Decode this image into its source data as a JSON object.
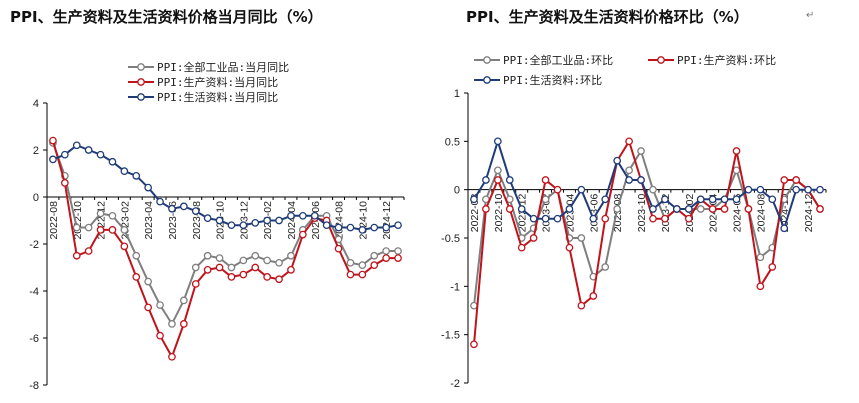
{
  "titles": {
    "left": "PPI、生产资料及生活资料价格当月同比（%）",
    "right": "PPI、生产资料及生活资料价格环比（%）",
    "right_mark": "↵"
  },
  "colors": {
    "all": "#7f7f7f",
    "production": "#c0141c",
    "living": "#1f3c78",
    "axis": "#000000"
  },
  "chart_data": [
    {
      "type": "line",
      "title": "PPI、生产资料及生活资料价格当月同比（%）",
      "xlabel": "",
      "ylabel": "",
      "ylim": [
        -8,
        4
      ],
      "yticks": [
        -8,
        -6,
        -4,
        -2,
        0,
        2,
        4
      ],
      "x": [
        "2022-08",
        "2022-09",
        "2022-10",
        "2022-11",
        "2022-12",
        "2023-01",
        "2023-02",
        "2023-03",
        "2023-04",
        "2023-05",
        "2023-06",
        "2023-07",
        "2023-08",
        "2023-09",
        "2023-10",
        "2023-11",
        "2023-12",
        "2024-01",
        "2024-02",
        "2024-03",
        "2024-04",
        "2024-05",
        "2024-06",
        "2024-07",
        "2024-08",
        "2024-09",
        "2024-10",
        "2024-11",
        "2024-12",
        "2025-01"
      ],
      "xtick_labels": [
        "2022-08",
        "2022-10",
        "2022-12",
        "2023-02",
        "2023-04",
        "2023-06",
        "2023-08",
        "2023-10",
        "2023-12",
        "2024-02",
        "2024-04",
        "2024-06",
        "2024-08",
        "2024-10",
        "2024-12"
      ],
      "legend_position": "top-center",
      "series": [
        {
          "name": "PPI:全部工业品:当月同比",
          "color_key": "all",
          "values": [
            2.3,
            0.9,
            -1.3,
            -1.3,
            -0.7,
            -0.8,
            -1.4,
            -2.5,
            -3.6,
            -4.6,
            -5.4,
            -4.4,
            -3.0,
            -2.5,
            -2.6,
            -3.0,
            -2.7,
            -2.5,
            -2.7,
            -2.8,
            -2.5,
            -1.4,
            -0.8,
            -0.8,
            -1.8,
            -2.8,
            -2.9,
            -2.5,
            -2.3,
            -2.3
          ]
        },
        {
          "name": "PPI:生产资料:当月同比",
          "color_key": "production",
          "values": [
            2.4,
            0.6,
            -2.5,
            -2.3,
            -1.4,
            -1.4,
            -2.1,
            -3.4,
            -4.7,
            -5.9,
            -6.8,
            -5.4,
            -3.7,
            -3.1,
            -3.0,
            -3.4,
            -3.3,
            -3.0,
            -3.4,
            -3.5,
            -3.1,
            -1.6,
            -0.9,
            -1.0,
            -2.2,
            -3.3,
            -3.3,
            -2.9,
            -2.6,
            -2.6
          ]
        },
        {
          "name": "PPI:生活资料:当月同比",
          "color_key": "living",
          "values": [
            1.6,
            1.8,
            2.2,
            2.0,
            1.8,
            1.5,
            1.1,
            0.9,
            0.4,
            -0.2,
            -0.5,
            -0.4,
            -0.6,
            -0.9,
            -1.0,
            -1.2,
            -1.2,
            -1.1,
            -1.0,
            -1.0,
            -0.8,
            -0.8,
            -0.8,
            -1.2,
            -1.3,
            -1.3,
            -1.4,
            -1.3,
            -1.3,
            -1.2
          ]
        }
      ]
    },
    {
      "type": "line",
      "title": "PPI、生产资料及生活资料价格环比（%）",
      "xlabel": "",
      "ylabel": "",
      "ylim": [
        -2,
        1
      ],
      "yticks": [
        -2,
        -1.5,
        -1,
        -0.5,
        0,
        0.5,
        1
      ],
      "x": [
        "2022-08",
        "2022-09",
        "2022-10",
        "2022-11",
        "2022-12",
        "2023-01",
        "2023-02",
        "2023-03",
        "2023-04",
        "2023-05",
        "2023-06",
        "2023-07",
        "2023-08",
        "2023-09",
        "2023-10",
        "2023-11",
        "2023-12",
        "2024-01",
        "2024-02",
        "2024-03",
        "2024-04",
        "2024-05",
        "2024-06",
        "2024-07",
        "2024-08",
        "2024-09",
        "2024-10",
        "2024-11",
        "2024-12",
        "2025-01"
      ],
      "xtick_labels": [
        "2022-08",
        "2022-10",
        "2022-12",
        "2023-02",
        "2023-04",
        "2023-06",
        "2023-08",
        "2023-10",
        "2023-12",
        "2024-02",
        "2024-04",
        "2024-06",
        "2024-08",
        "2024-10",
        "2024-12"
      ],
      "legend_position": "top-left",
      "series": [
        {
          "name": "PPI:全部工业品:环比",
          "color_key": "all",
          "values": [
            -1.2,
            -0.1,
            0.2,
            -0.1,
            -0.5,
            -0.4,
            -0.1,
            0.0,
            -0.5,
            -0.5,
            -0.9,
            -0.8,
            -0.2,
            0.2,
            0.4,
            0.0,
            -0.3,
            -0.2,
            -0.2,
            -0.2,
            -0.2,
            -0.1,
            0.2,
            -0.2,
            -0.7,
            -0.6,
            -0.1,
            0.1,
            0.0,
            -0.2
          ]
        },
        {
          "name": "PPI:生产资料:环比",
          "color_key": "production",
          "values": [
            -1.6,
            -0.2,
            0.1,
            -0.2,
            -0.6,
            -0.5,
            0.1,
            0.0,
            -0.6,
            -1.2,
            -1.1,
            -0.3,
            0.3,
            0.5,
            0.1,
            -0.3,
            -0.3,
            -0.2,
            -0.3,
            -0.1,
            -0.2,
            -0.2,
            0.4,
            -0.2,
            -1.0,
            -0.8,
            0.1,
            0.1,
            0.0,
            -0.2
          ]
        },
        {
          "name": "PPI:生活资料:环比",
          "color_key": "living",
          "values": [
            -0.1,
            0.1,
            0.5,
            0.1,
            -0.2,
            -0.3,
            -0.3,
            -0.3,
            -0.2,
            0.0,
            -0.3,
            -0.1,
            0.3,
            0.1,
            0.1,
            -0.2,
            -0.1,
            -0.2,
            -0.2,
            -0.1,
            -0.1,
            -0.1,
            -0.1,
            0.0,
            0.0,
            -0.1,
            -0.4,
            0.0,
            0.0,
            0.0
          ]
        }
      ]
    }
  ]
}
